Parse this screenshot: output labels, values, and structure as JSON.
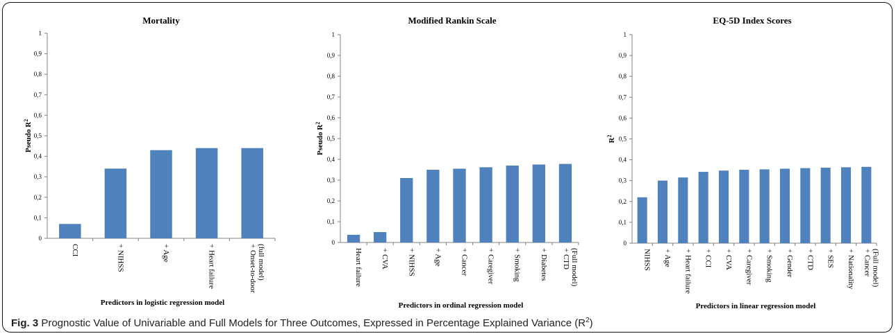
{
  "colors": {
    "bar": "#4F81BD",
    "axis": "#808080"
  },
  "caption": {
    "label": "Fig. 3",
    "text": "Prognostic Value of Univariable and Full Models for Three Outcomes, Expressed in Percentage Explained Variance (R",
    "sup": "2",
    "close": ")"
  },
  "chart_data": [
    {
      "type": "bar",
      "title": "Mortality",
      "ylabel": "Pseudo R",
      "ylabel_sup": "2",
      "xlabel": "Predictors in logistic regression model",
      "ylim": [
        0,
        1
      ],
      "yticks": [
        "0",
        "0,1",
        "0,2",
        "0,3",
        "0,4",
        "0,5",
        "0,6",
        "0,7",
        "0,8",
        "0,9",
        "1"
      ],
      "categories": [
        "CCI",
        "+ NIHSS",
        "+ Age",
        "+ Heart failure",
        "+ Onset-to-door|(full model)"
      ],
      "values": [
        0.07,
        0.34,
        0.43,
        0.44,
        0.44
      ]
    },
    {
      "type": "bar",
      "title": "Modified Rankin Scale",
      "ylabel": "Pseudo R",
      "ylabel_sup": "2",
      "xlabel": "Predictors in ordinal regression model",
      "ylim": [
        0,
        1
      ],
      "yticks": [
        "0",
        "0,1",
        "0,2",
        "0,3",
        "0,4",
        "0,5",
        "0,6",
        "0,7",
        "0,8",
        "0,9",
        "1"
      ],
      "categories": [
        "Heart failure",
        "+ CVA",
        "+ NIHSS",
        "+ Age",
        "+ Cancer",
        "+ Caregiver",
        "+ Smoking",
        "+ Diabetes",
        "+ CTD|(Full model)"
      ],
      "values": [
        0.037,
        0.05,
        0.31,
        0.35,
        0.355,
        0.362,
        0.37,
        0.375,
        0.378
      ]
    },
    {
      "type": "bar",
      "title": "EQ-5D Index Scores",
      "ylabel": "R",
      "ylabel_sup": "2",
      "xlabel": "Predictors in linear regression model",
      "ylim": [
        0,
        1
      ],
      "yticks": [
        "0",
        "0,1",
        "0,2",
        "0,3",
        "0,4",
        "0,5",
        "0,6",
        "0,7",
        "0,8",
        "0,9",
        "1"
      ],
      "categories": [
        "NIHSS",
        "+ Age",
        "+ Heart failure",
        "+ CCI",
        "+ CVA",
        "+ Caregiver",
        "+ Smoking",
        "+ Gender",
        "+ CTD",
        "+ SES",
        "+ Nationality",
        "+ Cancer|(Full model)"
      ],
      "values": [
        0.22,
        0.3,
        0.315,
        0.342,
        0.348,
        0.352,
        0.354,
        0.357,
        0.36,
        0.362,
        0.364,
        0.366
      ]
    }
  ]
}
